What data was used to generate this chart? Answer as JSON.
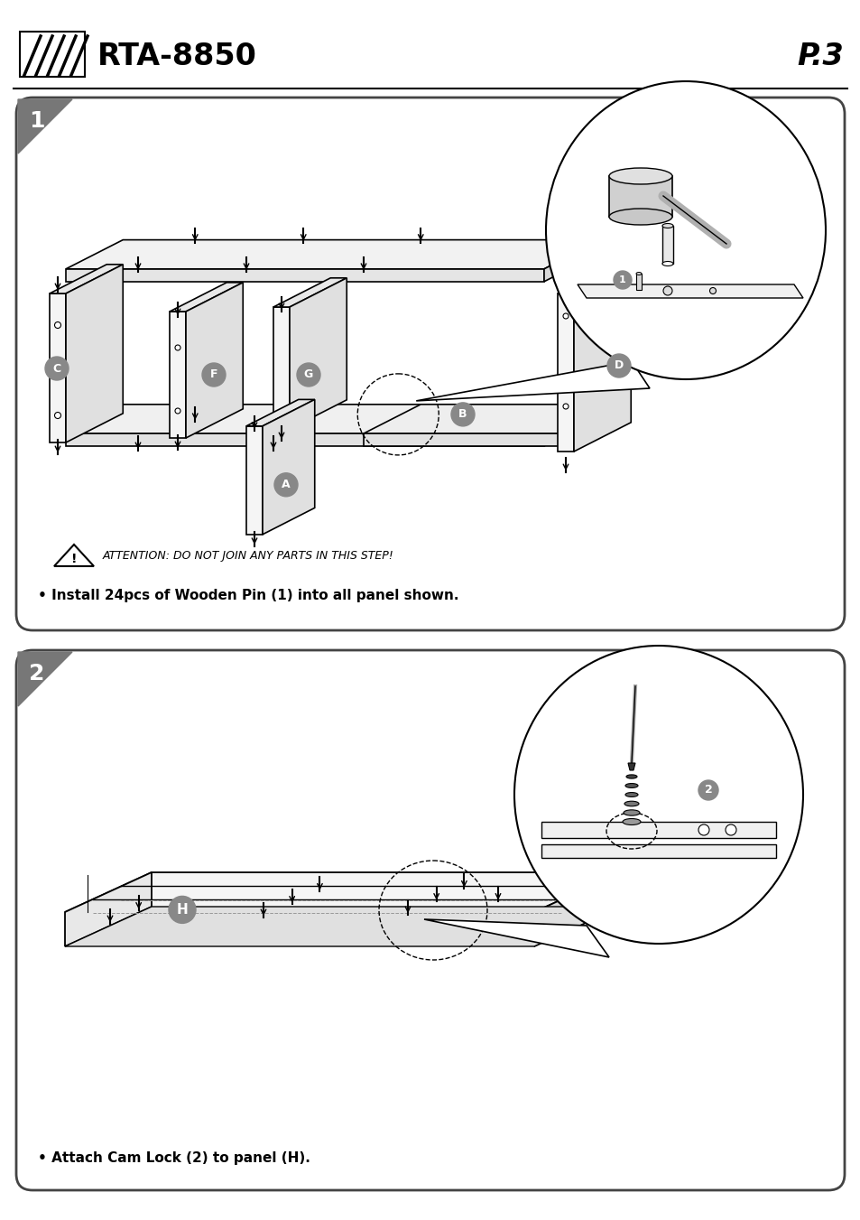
{
  "bg_color": "#ffffff",
  "page_number": "P.3",
  "model": "RTA-8850",
  "step1_instruction": "• Install 24pcs of Wooden Pin (1) into all panel shown.",
  "step2_instruction": "• Attach Cam Lock (2) to panel (H).",
  "attention_text": "ATTENTION: DO NOT JOIN ANY PARTS IN THIS STEP!",
  "gray_badge_color": "#888888",
  "panel_border": "#444444"
}
